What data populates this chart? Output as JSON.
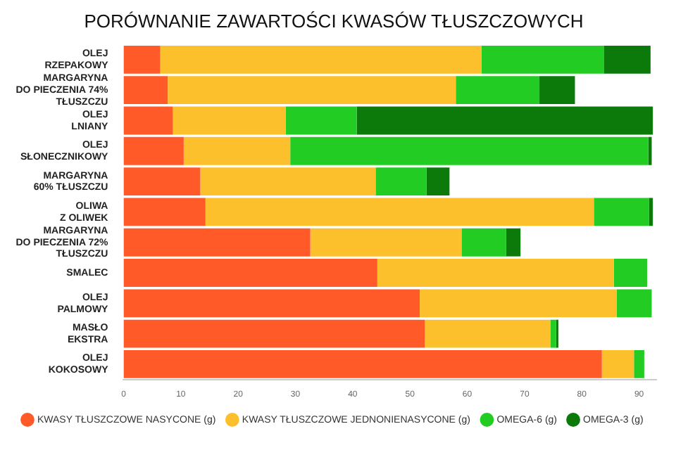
{
  "chart_data": {
    "type": "bar",
    "orientation": "horizontal",
    "stacked": true,
    "title": "PORÓWNANIE ZAWARTOŚCI KWASÓW TŁUSZCZOWYCH",
    "categories": [
      "OLEJ\nRZEPAKOWY",
      "MARGARYNA\nDO PIECZENIA 74%\nTŁUSZCZU",
      "OLEJ\nLNIANY",
      "OLEJ\nSŁONECZNIKOWY",
      "MARGARYNA\n60% TŁUSZCZU",
      "OLIWA\nZ OLIWEK",
      "MARGARYNA\nDO PIECZENIA 72%\nTŁUSZCZU",
      "SMALEC",
      "OLEJ\nPALMOWY",
      "MASŁO\nEKSTRA",
      "OLEJ\nKOKOSOWY"
    ],
    "series": [
      {
        "name": "KWASY TŁUSZCZOWE NASYCONE (g)",
        "color": "#ff5a28",
        "values": [
          6.4,
          7.7,
          8.6,
          10.5,
          13.4,
          14.3,
          32.6,
          44.3,
          51.7,
          52.6,
          83.5
        ]
      },
      {
        "name": "KWASY TŁUSZCZOWE JEDNONIENASYCONE (g)",
        "color": "#fcc02c",
        "values": [
          56.1,
          50.3,
          19.7,
          18.6,
          30.6,
          67.8,
          26.4,
          41.3,
          34.4,
          21.9,
          5.6
        ]
      },
      {
        "name": "OMEGA-6 (g)",
        "color": "#22cc22",
        "values": [
          21.4,
          14.6,
          12.4,
          62.5,
          8.9,
          9.6,
          7.8,
          5.8,
          6.1,
          1.0,
          1.8
        ]
      },
      {
        "name": "OMEGA-3 (g)",
        "color": "#0b7a0b",
        "values": [
          8.1,
          6.2,
          51.7,
          0.6,
          4.0,
          0.7,
          2.5,
          0,
          0,
          0.4,
          0
        ]
      }
    ],
    "xlim": [
      0,
      93
    ],
    "xticks": [
      0,
      10,
      20,
      30,
      40,
      50,
      60,
      70,
      80,
      90
    ],
    "grid": false,
    "legend": "bottom left"
  }
}
